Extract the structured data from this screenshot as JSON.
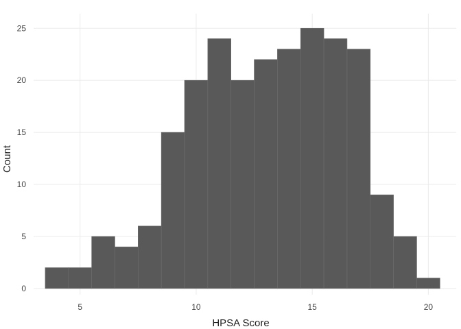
{
  "chart_data": {
    "type": "bar",
    "subtype": "histogram",
    "xlabel": "HPSA Score",
    "ylabel": "Count",
    "bin_width": 1,
    "bins": [
      {
        "x0": 3.5,
        "x1": 4.5,
        "count": 2
      },
      {
        "x0": 4.5,
        "x1": 5.5,
        "count": 2
      },
      {
        "x0": 5.5,
        "x1": 6.5,
        "count": 5
      },
      {
        "x0": 6.5,
        "x1": 7.5,
        "count": 4
      },
      {
        "x0": 7.5,
        "x1": 8.5,
        "count": 6
      },
      {
        "x0": 8.5,
        "x1": 9.5,
        "count": 15
      },
      {
        "x0": 9.5,
        "x1": 10.5,
        "count": 20
      },
      {
        "x0": 10.5,
        "x1": 11.5,
        "count": 24
      },
      {
        "x0": 11.5,
        "x1": 12.5,
        "count": 20
      },
      {
        "x0": 12.5,
        "x1": 13.5,
        "count": 22
      },
      {
        "x0": 13.5,
        "x1": 14.5,
        "count": 23
      },
      {
        "x0": 14.5,
        "x1": 15.5,
        "count": 25
      },
      {
        "x0": 15.5,
        "x1": 16.5,
        "count": 24
      },
      {
        "x0": 16.5,
        "x1": 17.5,
        "count": 23
      },
      {
        "x0": 17.5,
        "x1": 18.5,
        "count": 9
      },
      {
        "x0": 18.5,
        "x1": 19.5,
        "count": 5
      },
      {
        "x0": 19.5,
        "x1": 20.5,
        "count": 1
      }
    ],
    "xlim": [
      3.0,
      21.2
    ],
    "ylim": [
      -0.6,
      26.4
    ],
    "xticks": [
      5,
      10,
      15,
      20
    ],
    "yticks": [
      0,
      5,
      10,
      15,
      20,
      25
    ],
    "grid": true,
    "legend": "none",
    "bar_color": "#595959",
    "grid_color": "#ebebeb"
  }
}
